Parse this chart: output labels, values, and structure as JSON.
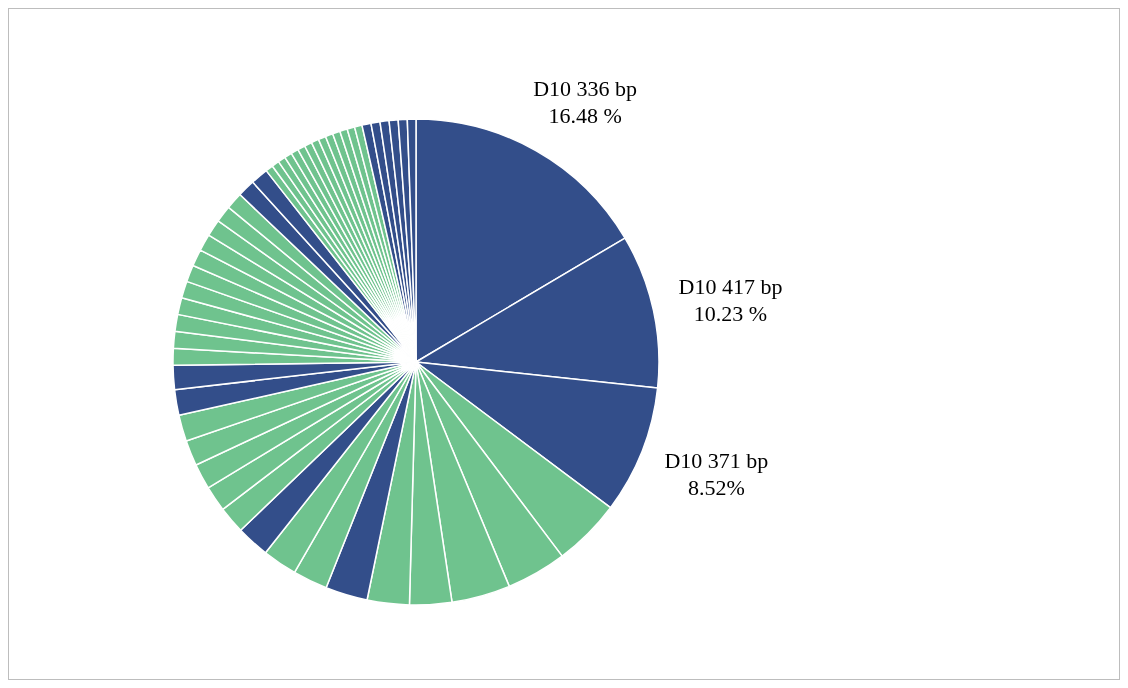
{
  "chart_data": {
    "type": "pie",
    "categories": [
      "D10 336 bp",
      "D10 417 bp",
      "D10 371 bp",
      null,
      null,
      null,
      null,
      null,
      null,
      null,
      null,
      null,
      null,
      null,
      null,
      null,
      null,
      null,
      null,
      null,
      null,
      null,
      null,
      null,
      null,
      null,
      null,
      null,
      null,
      null,
      null,
      null,
      null,
      null,
      null,
      null,
      null,
      null,
      null,
      null,
      null,
      null,
      null,
      null,
      null,
      null,
      null,
      null,
      null,
      null,
      null,
      null
    ],
    "values": [
      16.48,
      10.23,
      8.52,
      4.5,
      4.0,
      3.9,
      2.8,
      2.8,
      2.8,
      2.3,
      2.3,
      2.2,
      1.8,
      1.7,
      1.7,
      1.7,
      1.75,
      1.7,
      1.6,
      1.12,
      1.12,
      1.12,
      1.12,
      1.12,
      1.12,
      1.12,
      1.12,
      1.12,
      1.12,
      1.12,
      1.17,
      1.16,
      0.5,
      0.5,
      0.5,
      0.5,
      0.5,
      0.5,
      0.5,
      0.5,
      0.5,
      0.5,
      0.5,
      0.5,
      0.5,
      0.5,
      0.6,
      0.6,
      0.6,
      0.6,
      0.6,
      0.57
    ],
    "value_labels": [
      "16.48 %",
      "10.23 %",
      "8.52%",
      null,
      null,
      null,
      null,
      null,
      null,
      null,
      null,
      null,
      null,
      null,
      null,
      null,
      null,
      null,
      null,
      null,
      null,
      null,
      null,
      null,
      null,
      null,
      null,
      null,
      null,
      null,
      null,
      null,
      null,
      null,
      null,
      null,
      null,
      null,
      null,
      null,
      null,
      null,
      null,
      null,
      null,
      null,
      null,
      null,
      null,
      null,
      null,
      null
    ],
    "colors": [
      "#334e8a",
      "#334e8a",
      "#334e8a",
      "#6fc38e",
      "#6fc38e",
      "#6fc38e",
      "#6fc38e",
      "#6fc38e",
      "#334e8a",
      "#6fc38e",
      "#6fc38e",
      "#334e8a",
      "#6fc38e",
      "#6fc38e",
      "#6fc38e",
      "#6fc38e",
      "#6fc38e",
      "#334e8a",
      "#334e8a",
      "#6fc38e",
      "#6fc38e",
      "#6fc38e",
      "#6fc38e",
      "#6fc38e",
      "#6fc38e",
      "#6fc38e",
      "#6fc38e",
      "#6fc38e",
      "#6fc38e",
      "#6fc38e",
      "#334e8a",
      "#334e8a",
      "#6fc38e",
      "#6fc38e",
      "#6fc38e",
      "#6fc38e",
      "#6fc38e",
      "#6fc38e",
      "#6fc38e",
      "#6fc38e",
      "#6fc38e",
      "#6fc38e",
      "#6fc38e",
      "#6fc38e",
      "#6fc38e",
      "#6fc38e",
      "#334e8a",
      "#334e8a",
      "#334e8a",
      "#334e8a",
      "#334e8a",
      "#334e8a"
    ]
  }
}
